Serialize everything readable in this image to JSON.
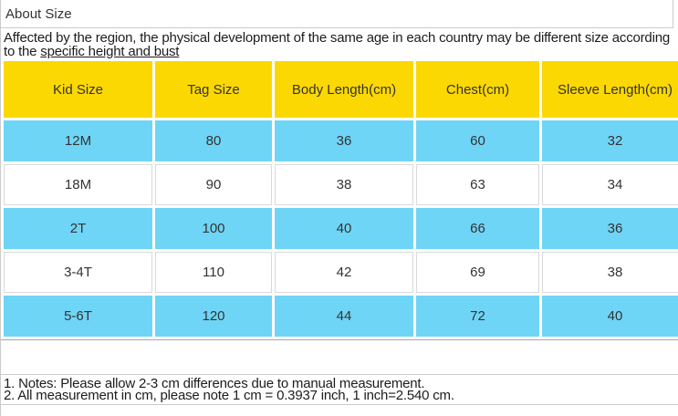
{
  "page": {
    "title": "About Size"
  },
  "intro": {
    "text_before": "Affected by the region, the physical development of the same age in each country may be different size according to the ",
    "text_underlined": "specific height and bust"
  },
  "table": {
    "columns": [
      "Kid Size",
      "Tag Size",
      "Body Length(cm)",
      "Chest(cm)",
      "Sleeve Length(cm)"
    ],
    "rows": [
      [
        "12M",
        "80",
        "36",
        "60",
        "32"
      ],
      [
        "18M",
        "90",
        "38",
        "63",
        "34"
      ],
      [
        "2T",
        "100",
        "40",
        "66",
        "36"
      ],
      [
        "3-4T",
        "110",
        "42",
        "69",
        "38"
      ],
      [
        "5-6T",
        "120",
        "44",
        "72",
        "40"
      ]
    ],
    "colors": {
      "header_bg": "#fcd802",
      "row_alt_bg": "#6fd5f6",
      "row_bg": "#ffffff"
    }
  },
  "notes": {
    "line1": "1. Notes: Please allow 2-3 cm differences due to manual measurement.",
    "line2": "2. All measurement in cm, please note 1 cm = 0.3937 inch, 1 inch=2.540 cm."
  }
}
